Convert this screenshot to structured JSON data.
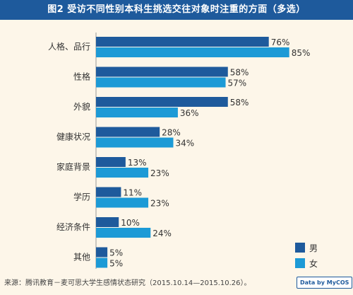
{
  "title": "图2  受访不同性别本科生挑选交往对象时注重的方面（多选）",
  "colors": {
    "male": "#1e5a9c",
    "female": "#1c9ad6",
    "header": "#1e5a9c",
    "background": "#fdf6e9"
  },
  "chart_data": {
    "type": "bar",
    "orientation": "horizontal",
    "title": "图2  受访不同性别本科生挑选交往对象时注重的方面（多选）",
    "categories": [
      "人格、品行",
      "性格",
      "外貌",
      "健康状况",
      "家庭背景",
      "学历",
      "经济条件",
      "其他"
    ],
    "series": [
      {
        "name": "男",
        "values": [
          76,
          58,
          58,
          28,
          13,
          11,
          10,
          5
        ]
      },
      {
        "name": "女",
        "values": [
          85,
          57,
          36,
          34,
          23,
          23,
          24,
          5
        ]
      }
    ],
    "value_suffix": "%",
    "xlim": [
      0,
      100
    ],
    "grid": false,
    "legend_position": "bottom-right"
  },
  "footer": {
    "source": "来源：腾讯教育－麦可思大学生感情状态研究（2015.10.14—2015.10.26）。",
    "brand": "Data by MyCOS"
  }
}
